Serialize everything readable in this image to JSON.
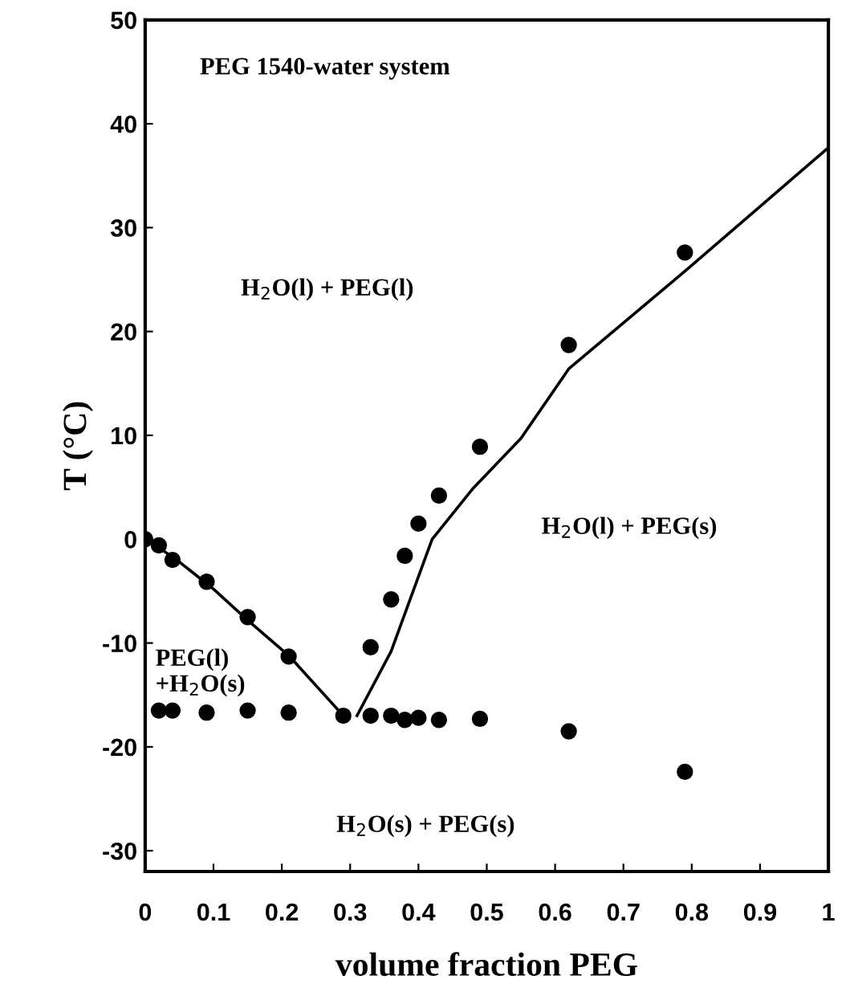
{
  "chart_data": {
    "type": "scatter",
    "xlabel": "volume fraction PEG",
    "ylabel": "T (°C)",
    "xlim": [
      0,
      1
    ],
    "xticks": [
      0,
      0.1,
      0.2,
      0.3,
      0.4,
      0.5,
      0.6,
      0.7,
      0.8,
      0.9,
      1
    ],
    "ylim": [
      -32,
      50
    ],
    "yticks": [
      -30,
      -20,
      -10,
      0,
      10,
      20,
      30,
      40,
      50
    ],
    "grid": false,
    "legend": false,
    "marker": "circle",
    "annotations": [
      "PEG 1540-water system",
      "H$_{2}$O(l) + PEG(l)",
      "H$_{2}$O(l) + PEG(s)",
      "PEG(l)\n+H$_{2}$O(s)",
      "H$_{2}$O(s) + PEG(s)"
    ],
    "series": [
      {
        "color": "#000000",
        "x": [
          0,
          0.02,
          0.04,
          0.09,
          0.15,
          0.21,
          0.29,
          0.33,
          0.36,
          0.38,
          0.4,
          0.43,
          0.49,
          0.62,
          0.79
        ],
        "values": [
          0,
          -0.6,
          -2,
          -4.1,
          -7.5,
          -11.3,
          -17,
          -10.4,
          -5.8,
          -1.6,
          1.5,
          4.2,
          8.9,
          18.7,
          27.6
        ]
      },
      {
        "color": "#000000",
        "x": [
          0.02,
          0.04,
          0.09,
          0.15,
          0.21,
          0.33,
          0.36,
          0.38,
          0.4,
          0.43,
          0.49,
          0.62,
          0.79
        ],
        "values": [
          -16.5,
          -16.5,
          -16.7,
          -16.5,
          -16.7,
          -17,
          -17,
          -17.4,
          -17.2,
          -17.4,
          -17.3,
          -18.5,
          -22.4
        ]
      },
      {
        "type": "line",
        "color": "#000000",
        "line_style": "solid",
        "marker": "none",
        "x": [
          0,
          0.02,
          0.05,
          0.1,
          0.15,
          0.21,
          0.29
        ],
        "values": [
          0,
          -0.8,
          -2.2,
          -4.8,
          -7.8,
          -11.2,
          -17
        ]
      },
      {
        "type": "line",
        "color": "#000000",
        "line_style": "solid",
        "marker": "none",
        "x": [
          0.31,
          0.36,
          0.42,
          0.48,
          0.55,
          0.62,
          0.79,
          1
        ],
        "values": [
          -17,
          -10.8,
          0,
          4.9,
          9.7,
          16.4,
          25.8,
          37.7
        ]
      }
    ]
  }
}
